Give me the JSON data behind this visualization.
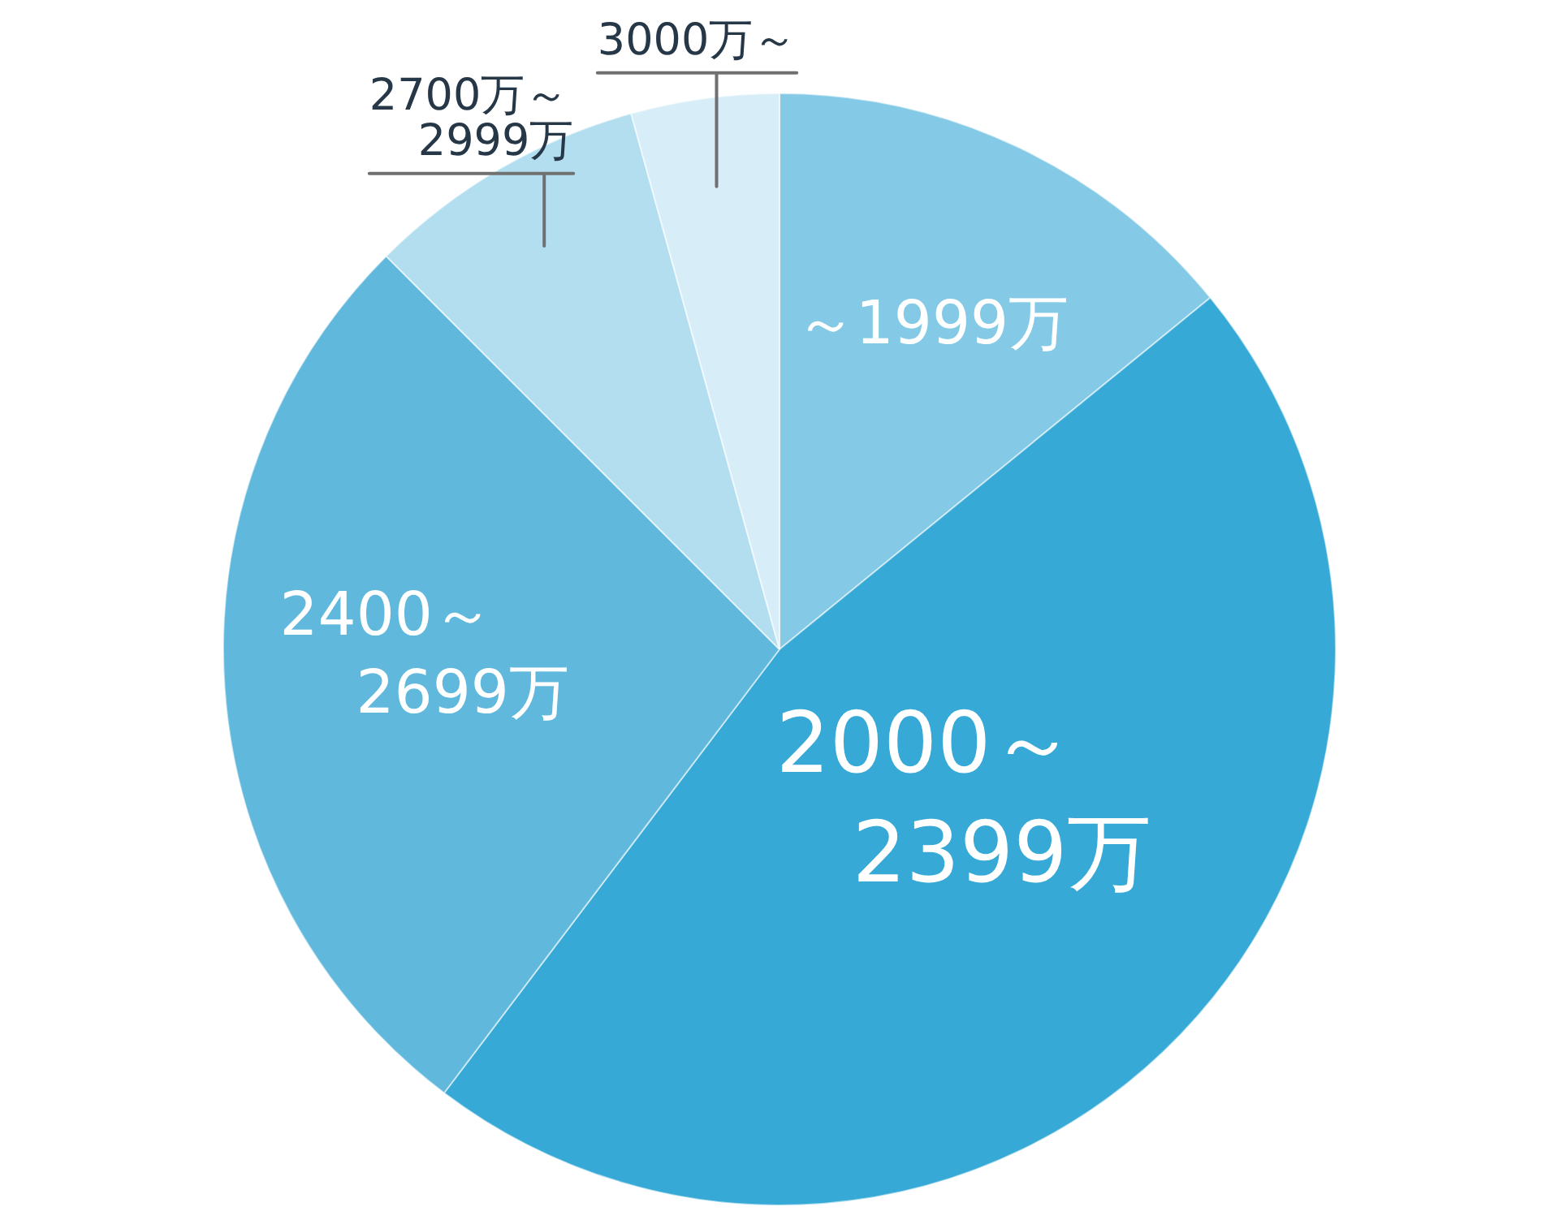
{
  "chart_data": {
    "type": "pie",
    "categories": [
      "～1999万",
      "2000～2399万",
      "2400～2699万",
      "2700万～2999万",
      "3000万～"
    ],
    "values": [
      14.1,
      46.2,
      27.2,
      8.2,
      4.3
    ],
    "colors": [
      "#84cae6",
      "#36a9d6",
      "#60b8dd",
      "#b2def0",
      "#d7eef8"
    ]
  }
}
